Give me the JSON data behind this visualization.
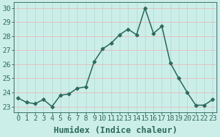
{
  "xlabel": "Humidex (Indice chaleur)",
  "x_values": [
    0,
    1,
    2,
    3,
    4,
    5,
    6,
    7,
    8,
    9,
    10,
    11,
    12,
    13,
    14,
    15,
    16,
    17,
    18,
    19,
    20,
    21,
    22,
    23
  ],
  "y_values": [
    23.6,
    23.3,
    23.2,
    23.5,
    23.0,
    23.8,
    23.9,
    24.3,
    24.4,
    26.2,
    27.1,
    27.5,
    28.1,
    28.5,
    28.1,
    30.0,
    28.2,
    28.7,
    26.1,
    25.0,
    24.0,
    23.1,
    23.1,
    23.5
  ],
  "line_color": "#2e6b5e",
  "marker": "D",
  "marker_size": 2.5,
  "bg_color": "#cceee8",
  "grid_color_h": "#e8b8b8",
  "grid_color_v": "#aadddd",
  "ylim": [
    22.6,
    30.4
  ],
  "yticks": [
    23,
    24,
    25,
    26,
    27,
    28,
    29,
    30
  ],
  "xticks": [
    0,
    1,
    2,
    3,
    4,
    5,
    6,
    7,
    8,
    9,
    10,
    11,
    12,
    13,
    14,
    15,
    16,
    17,
    18,
    19,
    20,
    21,
    22,
    23
  ],
  "tick_label_size": 7.5,
  "xlabel_size": 9,
  "line_width": 1.2
}
